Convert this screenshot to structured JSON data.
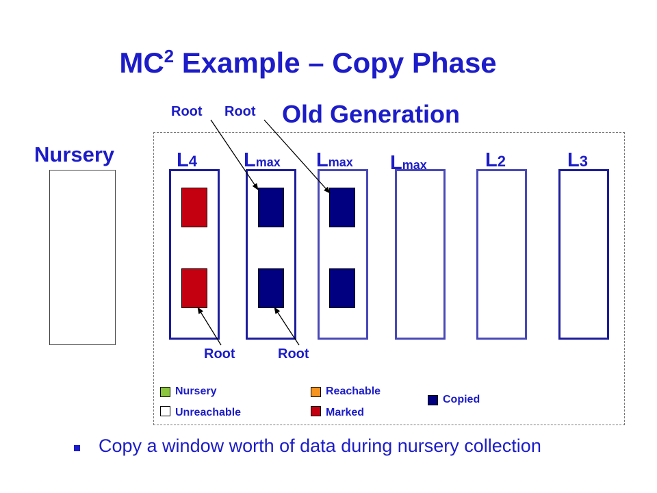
{
  "title": {
    "main": "MC",
    "superscript": "2",
    "rest": " Example – Copy Phase"
  },
  "old_generation_label": "Old Generation",
  "nursery_label": "Nursery",
  "root_label": "Root",
  "columns": [
    {
      "main": "L",
      "sub": "4"
    },
    {
      "main": "L",
      "sub": "max"
    },
    {
      "main": "L",
      "sub": "max"
    },
    {
      "main": "L",
      "sub": "max"
    },
    {
      "main": "L",
      "sub": "2"
    },
    {
      "main": "L",
      "sub": "3"
    }
  ],
  "legend": {
    "nursery": "Nursery",
    "unreachable": "Unreachable",
    "reachable": "Reachable",
    "marked": "Marked",
    "copied": "Copied"
  },
  "colors": {
    "nursery": "#8cc63e",
    "unreachable": "#ffffff",
    "reachable": "#f7941d",
    "marked": "#c40010",
    "copied": "#000080"
  },
  "bullet": "Copy a window worth of data during nursery collection"
}
